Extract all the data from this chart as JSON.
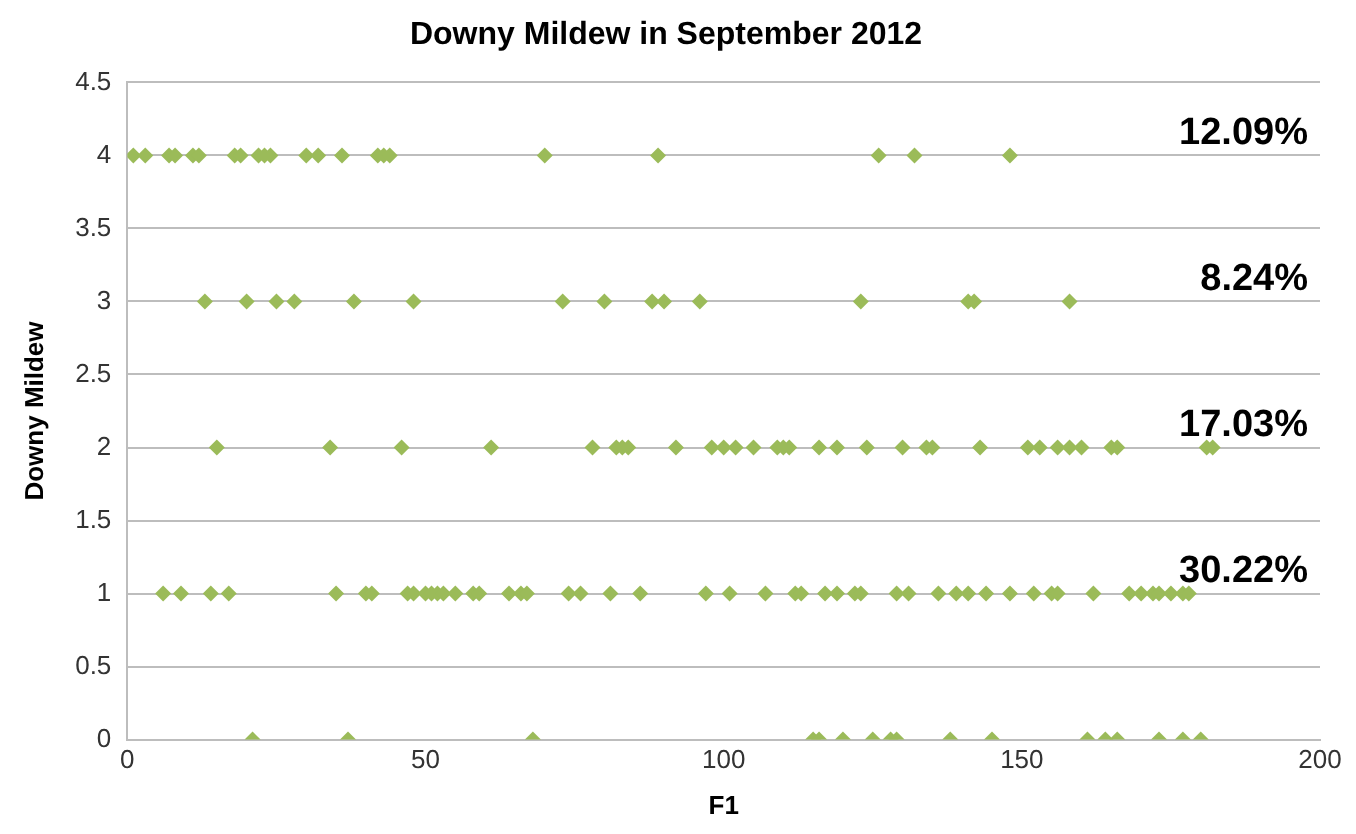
{
  "chart_data": {
    "type": "scatter",
    "title": "Downy Mildew in September 2012",
    "xlabel": "F1",
    "ylabel": "Downy Mildew",
    "series": [
      {
        "color": "#9bbb59",
        "x": [
          1,
          3,
          7,
          8,
          11,
          12,
          18,
          19,
          22,
          23,
          24,
          30,
          32,
          36,
          42,
          43,
          44,
          70,
          89,
          126,
          132,
          148
        ],
        "values": [
          4,
          4,
          4,
          4,
          4,
          4,
          4,
          4,
          4,
          4,
          4,
          4,
          4,
          4,
          4,
          4,
          4,
          4,
          4,
          4,
          4,
          4
        ]
      },
      {
        "color": "#9bbb59",
        "x": [
          13,
          20,
          25,
          28,
          38,
          48,
          73,
          80,
          88,
          90,
          96,
          123,
          141,
          142,
          158
        ],
        "values": [
          3,
          3,
          3,
          3,
          3,
          3,
          3,
          3,
          3,
          3,
          3,
          3,
          3,
          3,
          3
        ]
      },
      {
        "color": "#9bbb59",
        "x": [
          15,
          34,
          46,
          61,
          78,
          82,
          83,
          84,
          92,
          98,
          100,
          102,
          105,
          109,
          110,
          111,
          116,
          119,
          124,
          130,
          134,
          135,
          143,
          151,
          153,
          156,
          158,
          160,
          165,
          166,
          181,
          182
        ],
        "values": [
          2,
          2,
          2,
          2,
          2,
          2,
          2,
          2,
          2,
          2,
          2,
          2,
          2,
          2,
          2,
          2,
          2,
          2,
          2,
          2,
          2,
          2,
          2,
          2,
          2,
          2,
          2,
          2,
          2,
          2,
          2,
          2
        ]
      },
      {
        "color": "#9bbb59",
        "x": [
          6,
          9,
          14,
          17,
          35,
          40,
          41,
          47,
          48,
          50,
          51,
          52,
          53,
          55,
          58,
          59,
          64,
          66,
          67,
          74,
          76,
          81,
          86,
          97,
          101,
          107,
          112,
          113,
          117,
          119,
          122,
          123,
          129,
          131,
          136,
          139,
          141,
          144,
          148,
          152,
          155,
          156,
          162,
          168,
          170,
          172,
          173,
          175,
          177,
          178
        ],
        "values": [
          1,
          1,
          1,
          1,
          1,
          1,
          1,
          1,
          1,
          1,
          1,
          1,
          1,
          1,
          1,
          1,
          1,
          1,
          1,
          1,
          1,
          1,
          1,
          1,
          1,
          1,
          1,
          1,
          1,
          1,
          1,
          1,
          1,
          1,
          1,
          1,
          1,
          1,
          1,
          1,
          1,
          1,
          1,
          1,
          1,
          1,
          1,
          1,
          1,
          1
        ]
      },
      {
        "color": "#9bbb59",
        "x": [
          21,
          37,
          68,
          115,
          116,
          120,
          125,
          128,
          129,
          138,
          145,
          161,
          164,
          166,
          173,
          177,
          180
        ],
        "values": [
          0,
          0,
          0,
          0,
          0,
          0,
          0,
          0,
          0,
          0,
          0,
          0,
          0,
          0,
          0,
          0,
          0
        ]
      }
    ],
    "xlim": [
      0,
      200
    ],
    "xticks": [
      0,
      50,
      100,
      150,
      200
    ],
    "ylim": [
      0,
      4.5
    ],
    "yticks": [
      0,
      0.5,
      1,
      1.5,
      2,
      2.5,
      3,
      3.5,
      4,
      4.5
    ],
    "grid": "y",
    "legend": false,
    "marker": "diamond",
    "annotations": [
      "12.09%",
      "8.24%",
      "17.03%",
      "30.22%"
    ]
  }
}
